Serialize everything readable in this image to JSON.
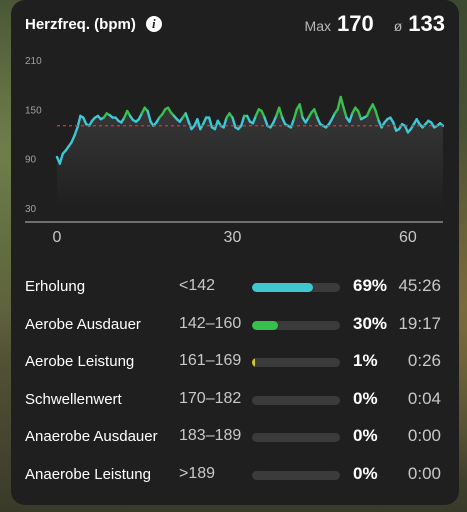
{
  "header": {
    "title": "Herzfreq. (bpm)",
    "max_label": "Max",
    "max_value": "170",
    "avg_label": "ø",
    "avg_value": "133"
  },
  "chart_data": {
    "type": "line",
    "ylim": [
      30,
      210
    ],
    "y_ticks": [
      "210",
      "150",
      "90",
      "30"
    ],
    "x_ticks": [
      "0",
      "30",
      "60"
    ],
    "xlim": [
      0,
      66
    ],
    "reference_line": 130,
    "colors": {
      "low": "#3ec8d4",
      "mid": "#35c14c",
      "high": "#f2e23a",
      "ref": "#e0323a"
    },
    "x": [
      0,
      0.5,
      1,
      1.5,
      2,
      2.5,
      3,
      3.5,
      4,
      4.5,
      5,
      5.5,
      6,
      6.5,
      7,
      7.5,
      8,
      8.5,
      9,
      9.5,
      10,
      10.5,
      11,
      11.5,
      12,
      12.5,
      13,
      13.5,
      14,
      14.5,
      15,
      15.5,
      16,
      16.5,
      17,
      17.5,
      18,
      18.5,
      19,
      19.5,
      20,
      20.5,
      21,
      21.5,
      22,
      22.5,
      23,
      23.5,
      24,
      24.5,
      25,
      25.5,
      26,
      26.5,
      27,
      27.5,
      28,
      28.5,
      29,
      29.5,
      30,
      30.5,
      31,
      31.5,
      32,
      32.5,
      33,
      33.5,
      34,
      34.5,
      35,
      35.5,
      36,
      36.5,
      37,
      37.5,
      38,
      38.5,
      39,
      39.5,
      40,
      40.5,
      41,
      41.5,
      42,
      42.5,
      43,
      43.5,
      44,
      44.5,
      45,
      45.5,
      46,
      46.5,
      47,
      47.5,
      48,
      48.5,
      49,
      49.5,
      50,
      50.5,
      51,
      51.5,
      52,
      52.5,
      53,
      53.5,
      54,
      54.5,
      55,
      55.5,
      56,
      56.5,
      57,
      57.5,
      58,
      58.5,
      59,
      59.5,
      60,
      60.5,
      61,
      61.5,
      62,
      62.5,
      63,
      63.5,
      64,
      64.5,
      65,
      65.5,
      66
    ],
    "y": [
      92,
      84,
      96,
      100,
      105,
      110,
      118,
      128,
      142,
      140,
      132,
      130,
      136,
      140,
      142,
      138,
      140,
      145,
      143,
      140,
      140,
      136,
      134,
      140,
      148,
      142,
      137,
      135,
      138,
      145,
      152,
      148,
      135,
      130,
      134,
      140,
      144,
      150,
      152,
      146,
      142,
      138,
      135,
      140,
      145,
      135,
      126,
      130,
      138,
      126,
      132,
      140,
      140,
      128,
      126,
      136,
      130,
      128,
      140,
      145,
      140,
      128,
      126,
      130,
      142,
      142,
      135,
      133,
      142,
      150,
      148,
      140,
      130,
      128,
      134,
      142,
      152,
      140,
      132,
      130,
      128,
      138,
      150,
      156,
      140,
      134,
      140,
      146,
      150,
      140,
      132,
      130,
      128,
      132,
      138,
      145,
      150,
      165,
      152,
      140,
      135,
      145,
      152,
      148,
      138,
      140,
      142,
      150,
      156,
      148,
      136,
      128,
      134,
      138,
      140,
      134,
      124,
      126,
      132,
      130,
      122,
      126,
      132,
      138,
      132,
      128,
      132,
      136,
      134,
      128,
      130,
      133,
      130
    ]
  },
  "zones": [
    {
      "name": "Erholung",
      "range": "<142",
      "fraction": 0.69,
      "pct": "69%",
      "time": "45:26",
      "color": "#3ec8d4"
    },
    {
      "name": "Aerobe Ausdauer",
      "range": "142–160",
      "fraction": 0.3,
      "pct": "30%",
      "time": "19:17",
      "color": "#35c14c"
    },
    {
      "name": "Aerobe Leistung",
      "range": "161–169",
      "fraction": 0.01,
      "pct": "1%",
      "time": "0:26",
      "color": "#d4c62a"
    },
    {
      "name": "Schwellenwert",
      "range": "170–182",
      "fraction": 0,
      "pct": "0%",
      "time": "0:04",
      "color": "#e88a2a"
    },
    {
      "name": "Anaerobe Ausdauer",
      "range": "183–189",
      "fraction": 0,
      "pct": "0%",
      "time": "0:00",
      "color": "#e0463a"
    },
    {
      "name": "Anaerobe Leistung",
      "range": ">189",
      "fraction": 0,
      "pct": "0%",
      "time": "0:00",
      "color": "#c8306a"
    }
  ]
}
